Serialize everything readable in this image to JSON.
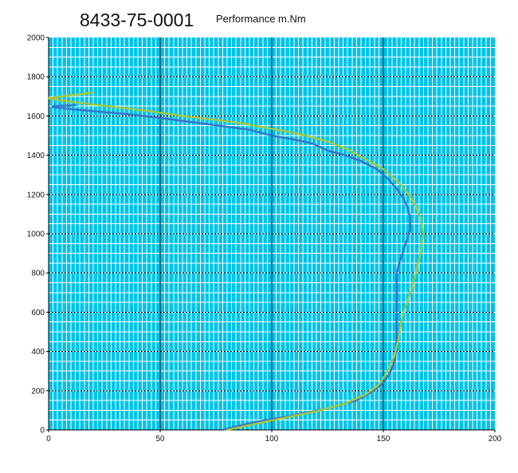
{
  "title": "8433-75-0001",
  "subtitle": "Performance m.Nm",
  "colors": {
    "background": "#00c3e8",
    "minor_grid": "#ffffff",
    "major_grid": "#000000",
    "series_0": "#3a72c8",
    "series_1": "#a8c83c"
  },
  "chart_data": {
    "type": "line",
    "title": "8433-75-0001",
    "subtitle": "Performance m.Nm",
    "xlabel": "",
    "ylabel": "",
    "xlim": [
      0,
      200
    ],
    "ylim": [
      0,
      2000
    ],
    "xticks": [
      0,
      50,
      100,
      150,
      200
    ],
    "yticks": [
      0,
      200,
      400,
      600,
      800,
      1000,
      1200,
      1400,
      1600,
      1800,
      2000
    ],
    "grid": true,
    "legend": "none",
    "series": [
      {
        "color": "#3a72c8",
        "points": [
          [
            78,
            0
          ],
          [
            85,
            20
          ],
          [
            95,
            45
          ],
          [
            110,
            75
          ],
          [
            125,
            110
          ],
          [
            138,
            150
          ],
          [
            145,
            195
          ],
          [
            150,
            240
          ],
          [
            153,
            290
          ],
          [
            155,
            350
          ],
          [
            156,
            420
          ],
          [
            156,
            550
          ],
          [
            156,
            680
          ],
          [
            156,
            800
          ],
          [
            158,
            880
          ],
          [
            160,
            950
          ],
          [
            162,
            1020
          ],
          [
            162,
            1080
          ],
          [
            161,
            1130
          ],
          [
            159,
            1180
          ],
          [
            156,
            1230
          ],
          [
            152,
            1280
          ],
          [
            147,
            1330
          ],
          [
            140,
            1370
          ],
          [
            133,
            1400
          ],
          [
            126,
            1420
          ],
          [
            122,
            1440
          ],
          [
            118,
            1460
          ],
          [
            110,
            1480
          ],
          [
            100,
            1500
          ],
          [
            90,
            1530
          ],
          [
            80,
            1545
          ],
          [
            70,
            1560
          ],
          [
            60,
            1575
          ],
          [
            50,
            1590
          ],
          [
            35,
            1610
          ],
          [
            20,
            1625
          ],
          [
            10,
            1635
          ],
          [
            2,
            1645
          ],
          [
            2,
            1650
          ],
          [
            12,
            1655
          ]
        ]
      },
      {
        "color": "#a8c83c",
        "points": [
          [
            80,
            0
          ],
          [
            90,
            25
          ],
          [
            105,
            60
          ],
          [
            120,
            95
          ],
          [
            133,
            135
          ],
          [
            142,
            180
          ],
          [
            148,
            230
          ],
          [
            152,
            300
          ],
          [
            155,
            380
          ],
          [
            157,
            470
          ],
          [
            158,
            550
          ],
          [
            159,
            600
          ],
          [
            161,
            660
          ],
          [
            163,
            730
          ],
          [
            165,
            820
          ],
          [
            167,
            920
          ],
          [
            168,
            1000
          ],
          [
            167,
            1070
          ],
          [
            165,
            1130
          ],
          [
            162,
            1190
          ],
          [
            157,
            1260
          ],
          [
            150,
            1330
          ],
          [
            142,
            1380
          ],
          [
            134,
            1430
          ],
          [
            125,
            1470
          ],
          [
            115,
            1500
          ],
          [
            105,
            1525
          ],
          [
            95,
            1545
          ],
          [
            85,
            1565
          ],
          [
            75,
            1580
          ],
          [
            60,
            1600
          ],
          [
            45,
            1625
          ],
          [
            30,
            1645
          ],
          [
            15,
            1665
          ],
          [
            5,
            1680
          ],
          [
            0,
            1690
          ],
          [
            2,
            1695
          ],
          [
            10,
            1705
          ],
          [
            20,
            1720
          ]
        ]
      }
    ]
  }
}
